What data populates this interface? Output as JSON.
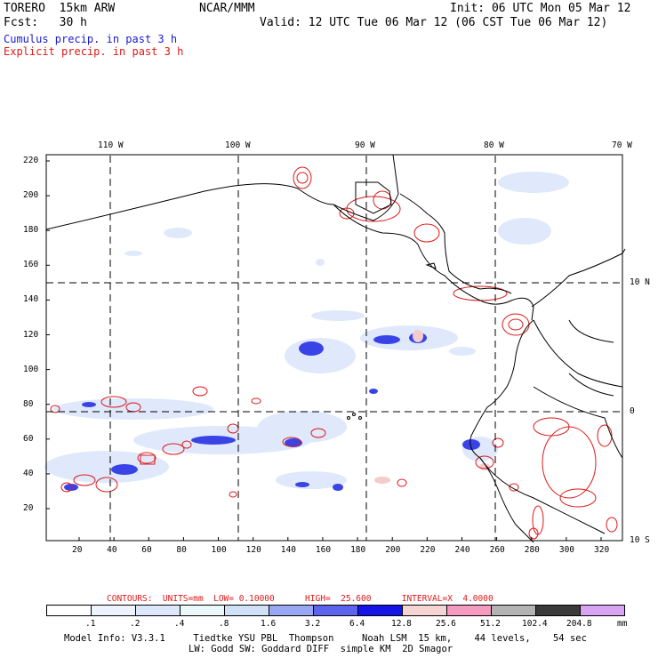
{
  "header": {
    "model": "TORERO  15km ARW",
    "org": "NCAR/MMM",
    "init": "Init: 06 UTC Mon 05 Mar 12",
    "fcst": "Fcst:   30 h",
    "valid": "Valid: 12 UTC Tue 06 Mar 12 (06 CST Tue 06 Mar 12)",
    "field1": "Cumulus precip. in past 3 h",
    "field2": "Explicit precip. in past 3 h"
  },
  "map": {
    "lon_labels": [
      "110 W",
      "100 W",
      "90 W",
      "80 W",
      "70 W"
    ],
    "lat_labels": [
      "10 N",
      "0",
      "10 S"
    ],
    "y_ticks": [
      "220",
      "200",
      "180",
      "160",
      "140",
      "120",
      "100",
      "80",
      "60",
      "40",
      "20"
    ],
    "x_ticks": [
      "20",
      "40",
      "60",
      "80",
      "100",
      "120",
      "140",
      "160",
      "180",
      "200",
      "220",
      "240",
      "260",
      "280",
      "300",
      "320"
    ]
  },
  "contours_line": "CONTOURS:  UNITS=mm  LOW= 0.10000      HIGH=  25.600      INTERVAL=X  4.0000",
  "colorbar": {
    "labels": [
      ".1",
      ".2",
      ".4",
      ".8",
      "1.6",
      "3.2",
      "6.4",
      "12.8",
      "25.6",
      "51.2",
      "102.4",
      "204.8"
    ],
    "unit": "mm",
    "colors": [
      "#ffffff",
      "#eef3ff",
      "#dde8fc",
      "#eaf8fb",
      "#cfe0f7",
      "#9aa8f4",
      "#5c64ee",
      "#1414e8",
      "#f7d4d4",
      "#f59bc0",
      "#b3b3b3",
      "#3a3a3a",
      "#d7a3f2"
    ]
  },
  "model_info": {
    "line1": "Model Info: V3.3.1     Tiedtke YSU PBL  Thompson     Noah LSM  15 km,    44 levels,    54 sec",
    "line2": "LW: Godd SW: Goddard DIFF  simple KM  2D Smagor"
  }
}
